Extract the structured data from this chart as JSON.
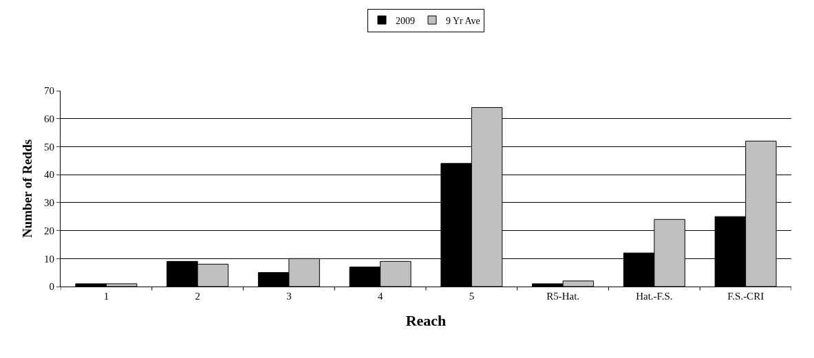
{
  "chart_data": {
    "type": "bar",
    "xlabel": "Reach",
    "ylabel": "Number of Redds",
    "categories": [
      "1",
      "2",
      "3",
      "4",
      "5",
      "R5-Hat.",
      "Hat.-F.S.",
      "F.S.-CRI"
    ],
    "series": [
      {
        "name": "2009",
        "color": "#000000",
        "values": [
          1,
          9,
          5,
          7,
          44,
          1,
          12,
          25
        ]
      },
      {
        "name": "9 Yr Ave",
        "color": "#c0c0c0",
        "values": [
          1,
          8,
          10,
          9,
          64,
          2,
          24,
          52
        ]
      }
    ],
    "ylim": [
      0,
      70
    ],
    "yticks": [
      0,
      10,
      20,
      30,
      40,
      50,
      60,
      70
    ],
    "grid": "y",
    "legend": "top"
  }
}
